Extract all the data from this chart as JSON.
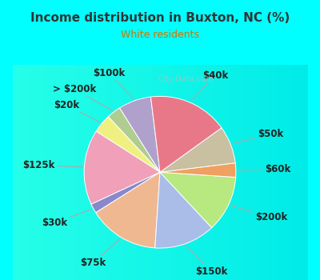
{
  "title": "Income distribution in Buxton, NC (%)",
  "subtitle": "White residents",
  "title_color": "#333333",
  "subtitle_color": "#cc7700",
  "bg_cyan": "#00ffff",
  "bg_chart": "#e8f5ee",
  "watermark": "City-Data.com",
  "labels": [
    "$100k",
    "> $200k",
    "$20k",
    "$125k",
    "$30k",
    "$75k",
    "$150k",
    "$200k",
    "$60k",
    "$50k",
    "$40k"
  ],
  "values": [
    7,
    3,
    4,
    16,
    2,
    15,
    13,
    12,
    3,
    8,
    17
  ],
  "colors": [
    "#b0a0cc",
    "#b0cc90",
    "#f0f080",
    "#f0a0b8",
    "#8888cc",
    "#f0b890",
    "#aabce8",
    "#b8e880",
    "#f0a060",
    "#c8c0a0",
    "#e87888"
  ],
  "startangle": 97,
  "label_fontsize": 8.5,
  "label_color": "#222222",
  "line_color": "#aaaaaa"
}
